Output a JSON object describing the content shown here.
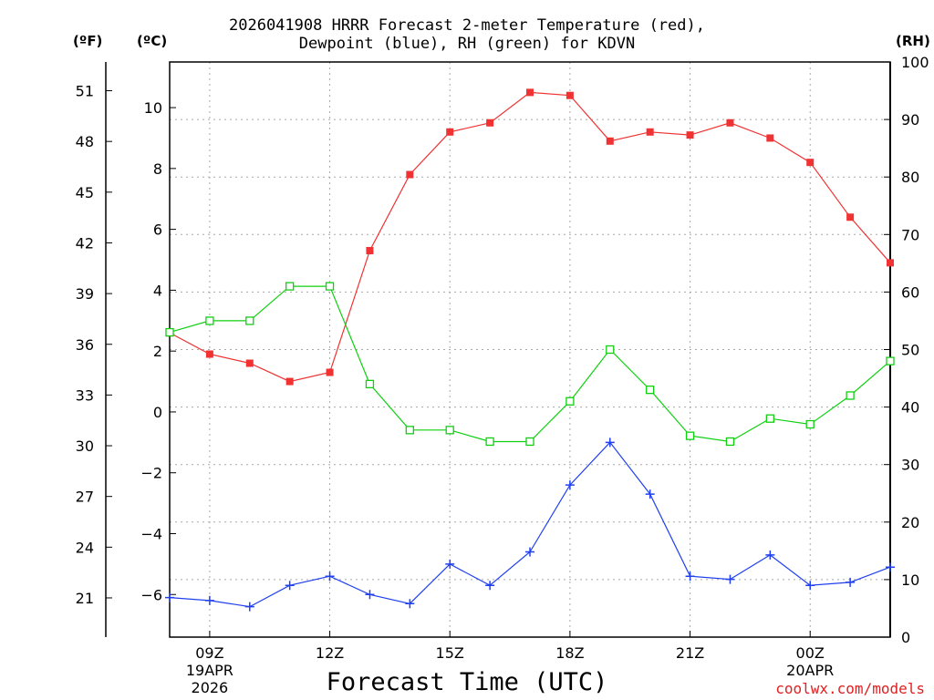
{
  "title": {
    "line1": "2026041908 HRRR Forecast 2-meter Temperature (red),",
    "line2": "Dewpoint (blue), RH (green) for KDVN"
  },
  "units": {
    "fahrenheit": "(ºF)",
    "celsius": "(ºC)",
    "rh": "(RH)"
  },
  "credit": "coolwx.com/models",
  "colors": {
    "temperature": "#f03232",
    "dewpoint": "#2040f0",
    "rh": "#10d010",
    "grid": "#a8a8a8",
    "axis": "#000000"
  },
  "chart_data": {
    "type": "line",
    "xlabel": "Forecast Time (UTC)",
    "x_hours": [
      8,
      9,
      10,
      11,
      12,
      13,
      14,
      15,
      16,
      17,
      18,
      19,
      20,
      21,
      22,
      23,
      24,
      25,
      26
    ],
    "x_ticks": [
      {
        "hour": 9,
        "label": "09Z",
        "sub1": "19APR",
        "sub2": "2026"
      },
      {
        "hour": 12,
        "label": "12Z",
        "sub1": "",
        "sub2": ""
      },
      {
        "hour": 15,
        "label": "15Z",
        "sub1": "",
        "sub2": ""
      },
      {
        "hour": 18,
        "label": "18Z",
        "sub1": "",
        "sub2": ""
      },
      {
        "hour": 21,
        "label": "21Z",
        "sub1": "",
        "sub2": ""
      },
      {
        "hour": 24,
        "label": "00Z",
        "sub1": "20APR",
        "sub2": ""
      }
    ],
    "xlim": [
      8,
      26
    ],
    "celsius_axis": {
      "range": [
        -7.4,
        11.5
      ],
      "ticks": [
        -6,
        -4,
        -2,
        0,
        2,
        4,
        6,
        8,
        10
      ]
    },
    "fahrenheit_axis": {
      "ticks": [
        21,
        24,
        27,
        30,
        33,
        36,
        39,
        42,
        45,
        48,
        51
      ]
    },
    "rh_axis": {
      "range": [
        0,
        100
      ],
      "ticks": [
        0,
        10,
        20,
        30,
        40,
        50,
        60,
        70,
        80,
        90,
        100
      ]
    },
    "series": [
      {
        "name": "Temperature",
        "unit": "C",
        "marker": "filled-square",
        "values": [
          2.6,
          1.9,
          1.6,
          1.0,
          1.3,
          5.3,
          7.8,
          9.2,
          9.5,
          10.5,
          10.4,
          8.9,
          9.2,
          9.1,
          9.5,
          9.0,
          8.2,
          6.4,
          4.9
        ]
      },
      {
        "name": "Dewpoint",
        "unit": "C",
        "marker": "plus",
        "values": [
          -6.1,
          -6.2,
          -6.4,
          -5.7,
          -5.4,
          -6.0,
          -6.3,
          -5.0,
          -5.7,
          -4.6,
          -2.4,
          -1.0,
          -2.7,
          -5.4,
          -5.5,
          -4.7,
          -5.7,
          -5.6,
          -5.1
        ]
      },
      {
        "name": "RH",
        "unit": "%",
        "marker": "open-square",
        "values": [
          53,
          55,
          55,
          61,
          61,
          44,
          36,
          36,
          34,
          34,
          41,
          50,
          43,
          35,
          34,
          38,
          37,
          42,
          48
        ]
      }
    ]
  }
}
